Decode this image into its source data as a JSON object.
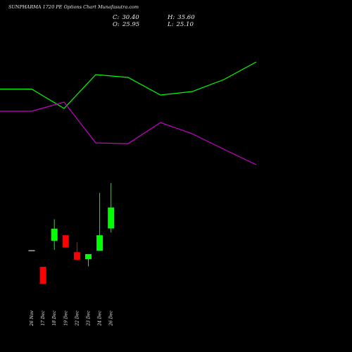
{
  "header": {
    "title": "SUNPHARMA 1720 PE Options Chart Munafasutra.com",
    "close_label": "C:",
    "close_value": "30.40",
    "open_label": "O:",
    "open_value": "25.95",
    "high_label": "H:",
    "high_value": "35.60",
    "low_label": "L:",
    "low_value": "25.10"
  },
  "colors": {
    "background": "#000000",
    "bull": "#00ff00",
    "bear": "#ff0000",
    "line_green": "#00ff00",
    "line_magenta": "#cc00cc",
    "text": "#e8e8e8"
  },
  "chart_data": {
    "type": "candlestick",
    "categories": [
      "26 Nov",
      "17 Dec",
      "18 Dec",
      "19 Dec",
      "22 Dec",
      "23 Dec",
      "24 Dec",
      "26 Dec"
    ],
    "candles": [
      {
        "date": "26 Nov",
        "open": 21.3,
        "close": 21.3,
        "high": 21.3,
        "low": 21.3
      },
      {
        "date": "17 Dec",
        "open": 17.8,
        "close": 14.2,
        "high": 17.8,
        "low": 14.2
      },
      {
        "date": "18 Dec",
        "open": 23.3,
        "close": 25.9,
        "high": 27.9,
        "low": 21.4
      },
      {
        "date": "19 Dec",
        "open": 24.5,
        "close": 21.9,
        "high": 24.5,
        "low": 21.9
      },
      {
        "date": "22 Dec",
        "open": 20.9,
        "close": 19.3,
        "high": 23.0,
        "low": 19.3
      },
      {
        "date": "23 Dec",
        "open": 19.4,
        "close": 20.5,
        "high": 20.5,
        "low": 17.9
      },
      {
        "date": "24 Dec",
        "open": 21.2,
        "close": 24.5,
        "high": 33.5,
        "low": 21.2
      },
      {
        "date": "26 Dec",
        "open": 25.95,
        "close": 30.4,
        "high": 35.6,
        "low": 25.1
      }
    ],
    "green_line": [
      126.5,
      126.5,
      154,
      106,
      110,
      135,
      130,
      113,
      88
    ],
    "magenta_line": [
      158,
      158,
      145,
      203,
      204,
      174,
      190,
      212,
      234
    ],
    "grid": false
  }
}
